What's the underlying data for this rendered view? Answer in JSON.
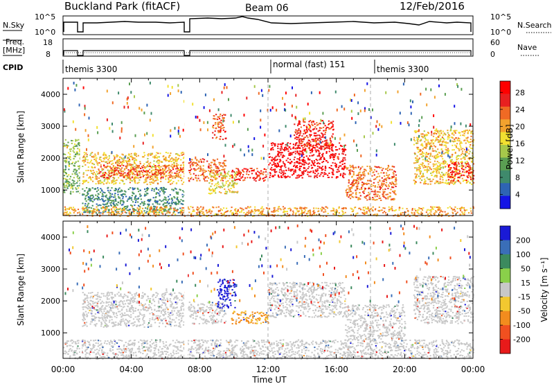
{
  "header": {
    "station": "Buckland Park (fitACF)",
    "beam": "Beam 06",
    "date": "12/Feb/2016"
  },
  "aux_panels": {
    "nsky_label": "N.Sky",
    "nsky_ticks": [
      "10^5",
      "10^0"
    ],
    "nsearch_label": "N.Search",
    "nsearch_ticks": [
      "10^5",
      "10^0"
    ],
    "freq_label_line1": "Freq.",
    "freq_label_line2": "[MHz]",
    "freq_ticks": [
      "18",
      "8"
    ],
    "nave_label": "Nave",
    "nave_ticks": [
      "60",
      "0"
    ],
    "cpid_label": "CPID",
    "cpid_segments": [
      {
        "name": "themis 3300",
        "start_hour": 0
      },
      {
        "name": "normal (fast) 151",
        "start_hour": 12
      },
      {
        "name": "themis 3300",
        "start_hour": 18
      }
    ]
  },
  "chart_data": [
    {
      "type": "heatmap",
      "name": "power",
      "xlabel": "Time UT",
      "ylabel": "Slant Range [km]",
      "xlim_hours": [
        0,
        24
      ],
      "ylim_km": [
        200,
        4500
      ],
      "x_ticks": [
        "00:00",
        "04:00",
        "08:00",
        "12:00",
        "16:00",
        "20:00",
        "00:00"
      ],
      "y_ticks": [
        1000,
        2000,
        3000,
        4000
      ],
      "colorbar": {
        "label": "Power [dB]",
        "ticks": [
          4,
          8,
          12,
          16,
          20,
          24,
          28
        ],
        "range": [
          0,
          30
        ],
        "colors": [
          "#1414e6",
          "#2e64b4",
          "#3f8a6c",
          "#5a9e52",
          "#a6c84a",
          "#f2e030",
          "#f2a22e",
          "#f06a24",
          "#e82020",
          "#ff0000"
        ]
      },
      "patches": [
        {
          "t0": 0.0,
          "t1": 1.0,
          "r0": 900,
          "r1": 2600,
          "v": 12
        },
        {
          "t0": 1.1,
          "t1": 7.1,
          "r0": 1200,
          "r1": 2200,
          "v": 18
        },
        {
          "t0": 2.0,
          "t1": 7.0,
          "r0": 1400,
          "r1": 1800,
          "v": 24
        },
        {
          "t0": 1.1,
          "t1": 7.1,
          "r0": 300,
          "r1": 1100,
          "v": 8
        },
        {
          "t0": 7.3,
          "t1": 9.5,
          "r0": 1300,
          "r1": 2000,
          "v": 22
        },
        {
          "t0": 8.5,
          "t1": 10.2,
          "r0": 900,
          "r1": 1600,
          "v": 16
        },
        {
          "t0": 8.7,
          "t1": 9.5,
          "r0": 2600,
          "r1": 3400,
          "v": 24
        },
        {
          "t0": 9.8,
          "t1": 11.9,
          "r0": 1300,
          "r1": 1700,
          "v": 26
        },
        {
          "t0": 12.0,
          "t1": 16.5,
          "r0": 1400,
          "r1": 2500,
          "v": 28
        },
        {
          "t0": 13.5,
          "t1": 15.8,
          "r0": 2300,
          "r1": 3200,
          "v": 26
        },
        {
          "t0": 16.5,
          "t1": 19.5,
          "r0": 700,
          "r1": 1800,
          "v": 22
        },
        {
          "t0": 20.5,
          "t1": 24.0,
          "r0": 1200,
          "r1": 2900,
          "v": 18
        },
        {
          "t0": 22.5,
          "t1": 24.0,
          "r0": 1300,
          "r1": 1900,
          "v": 26
        },
        {
          "t0": 0.0,
          "t1": 24.0,
          "r0": 200,
          "r1": 500,
          "v": 20
        }
      ]
    },
    {
      "type": "heatmap",
      "name": "velocity",
      "xlabel": "Time UT",
      "ylabel": "Slant Range [km]",
      "xlim_hours": [
        0,
        24
      ],
      "ylim_km": [
        200,
        4500
      ],
      "x_ticks": [
        "00:00",
        "04:00",
        "08:00",
        "12:00",
        "16:00",
        "20:00",
        "00:00"
      ],
      "y_ticks": [
        1000,
        2000,
        3000,
        4000
      ],
      "colorbar": {
        "label": "Velocity [m s⁻¹]",
        "ticks": [
          200,
          100,
          50,
          15,
          -15,
          -50,
          -100,
          -200
        ],
        "colors": [
          "#1a1ad6",
          "#3a6eb8",
          "#3c8a5e",
          "#8ad04a",
          "#c8c8c8",
          "#f2c830",
          "#f28c1e",
          "#f05020",
          "#e81a1a"
        ]
      },
      "patches": [
        {
          "t0": 0.0,
          "t1": 24.0,
          "r0": 200,
          "r1": 800,
          "v": 0
        },
        {
          "t0": 1.1,
          "t1": 7.1,
          "r0": 1200,
          "r1": 2300,
          "v": 0
        },
        {
          "t0": 7.3,
          "t1": 9.5,
          "r0": 1300,
          "r1": 2000,
          "v": 0
        },
        {
          "t0": 9.0,
          "t1": 10.1,
          "r0": 1800,
          "r1": 2700,
          "v": 180
        },
        {
          "t0": 9.8,
          "t1": 12.0,
          "r0": 1300,
          "r1": 1700,
          "v": -40
        },
        {
          "t0": 12.0,
          "t1": 16.5,
          "r0": 1500,
          "r1": 2600,
          "v": 0
        },
        {
          "t0": 16.5,
          "t1": 20.0,
          "r0": 800,
          "r1": 1900,
          "v": 0
        },
        {
          "t0": 20.5,
          "t1": 24.0,
          "r0": 1300,
          "r1": 2800,
          "v": 0
        }
      ]
    }
  ]
}
